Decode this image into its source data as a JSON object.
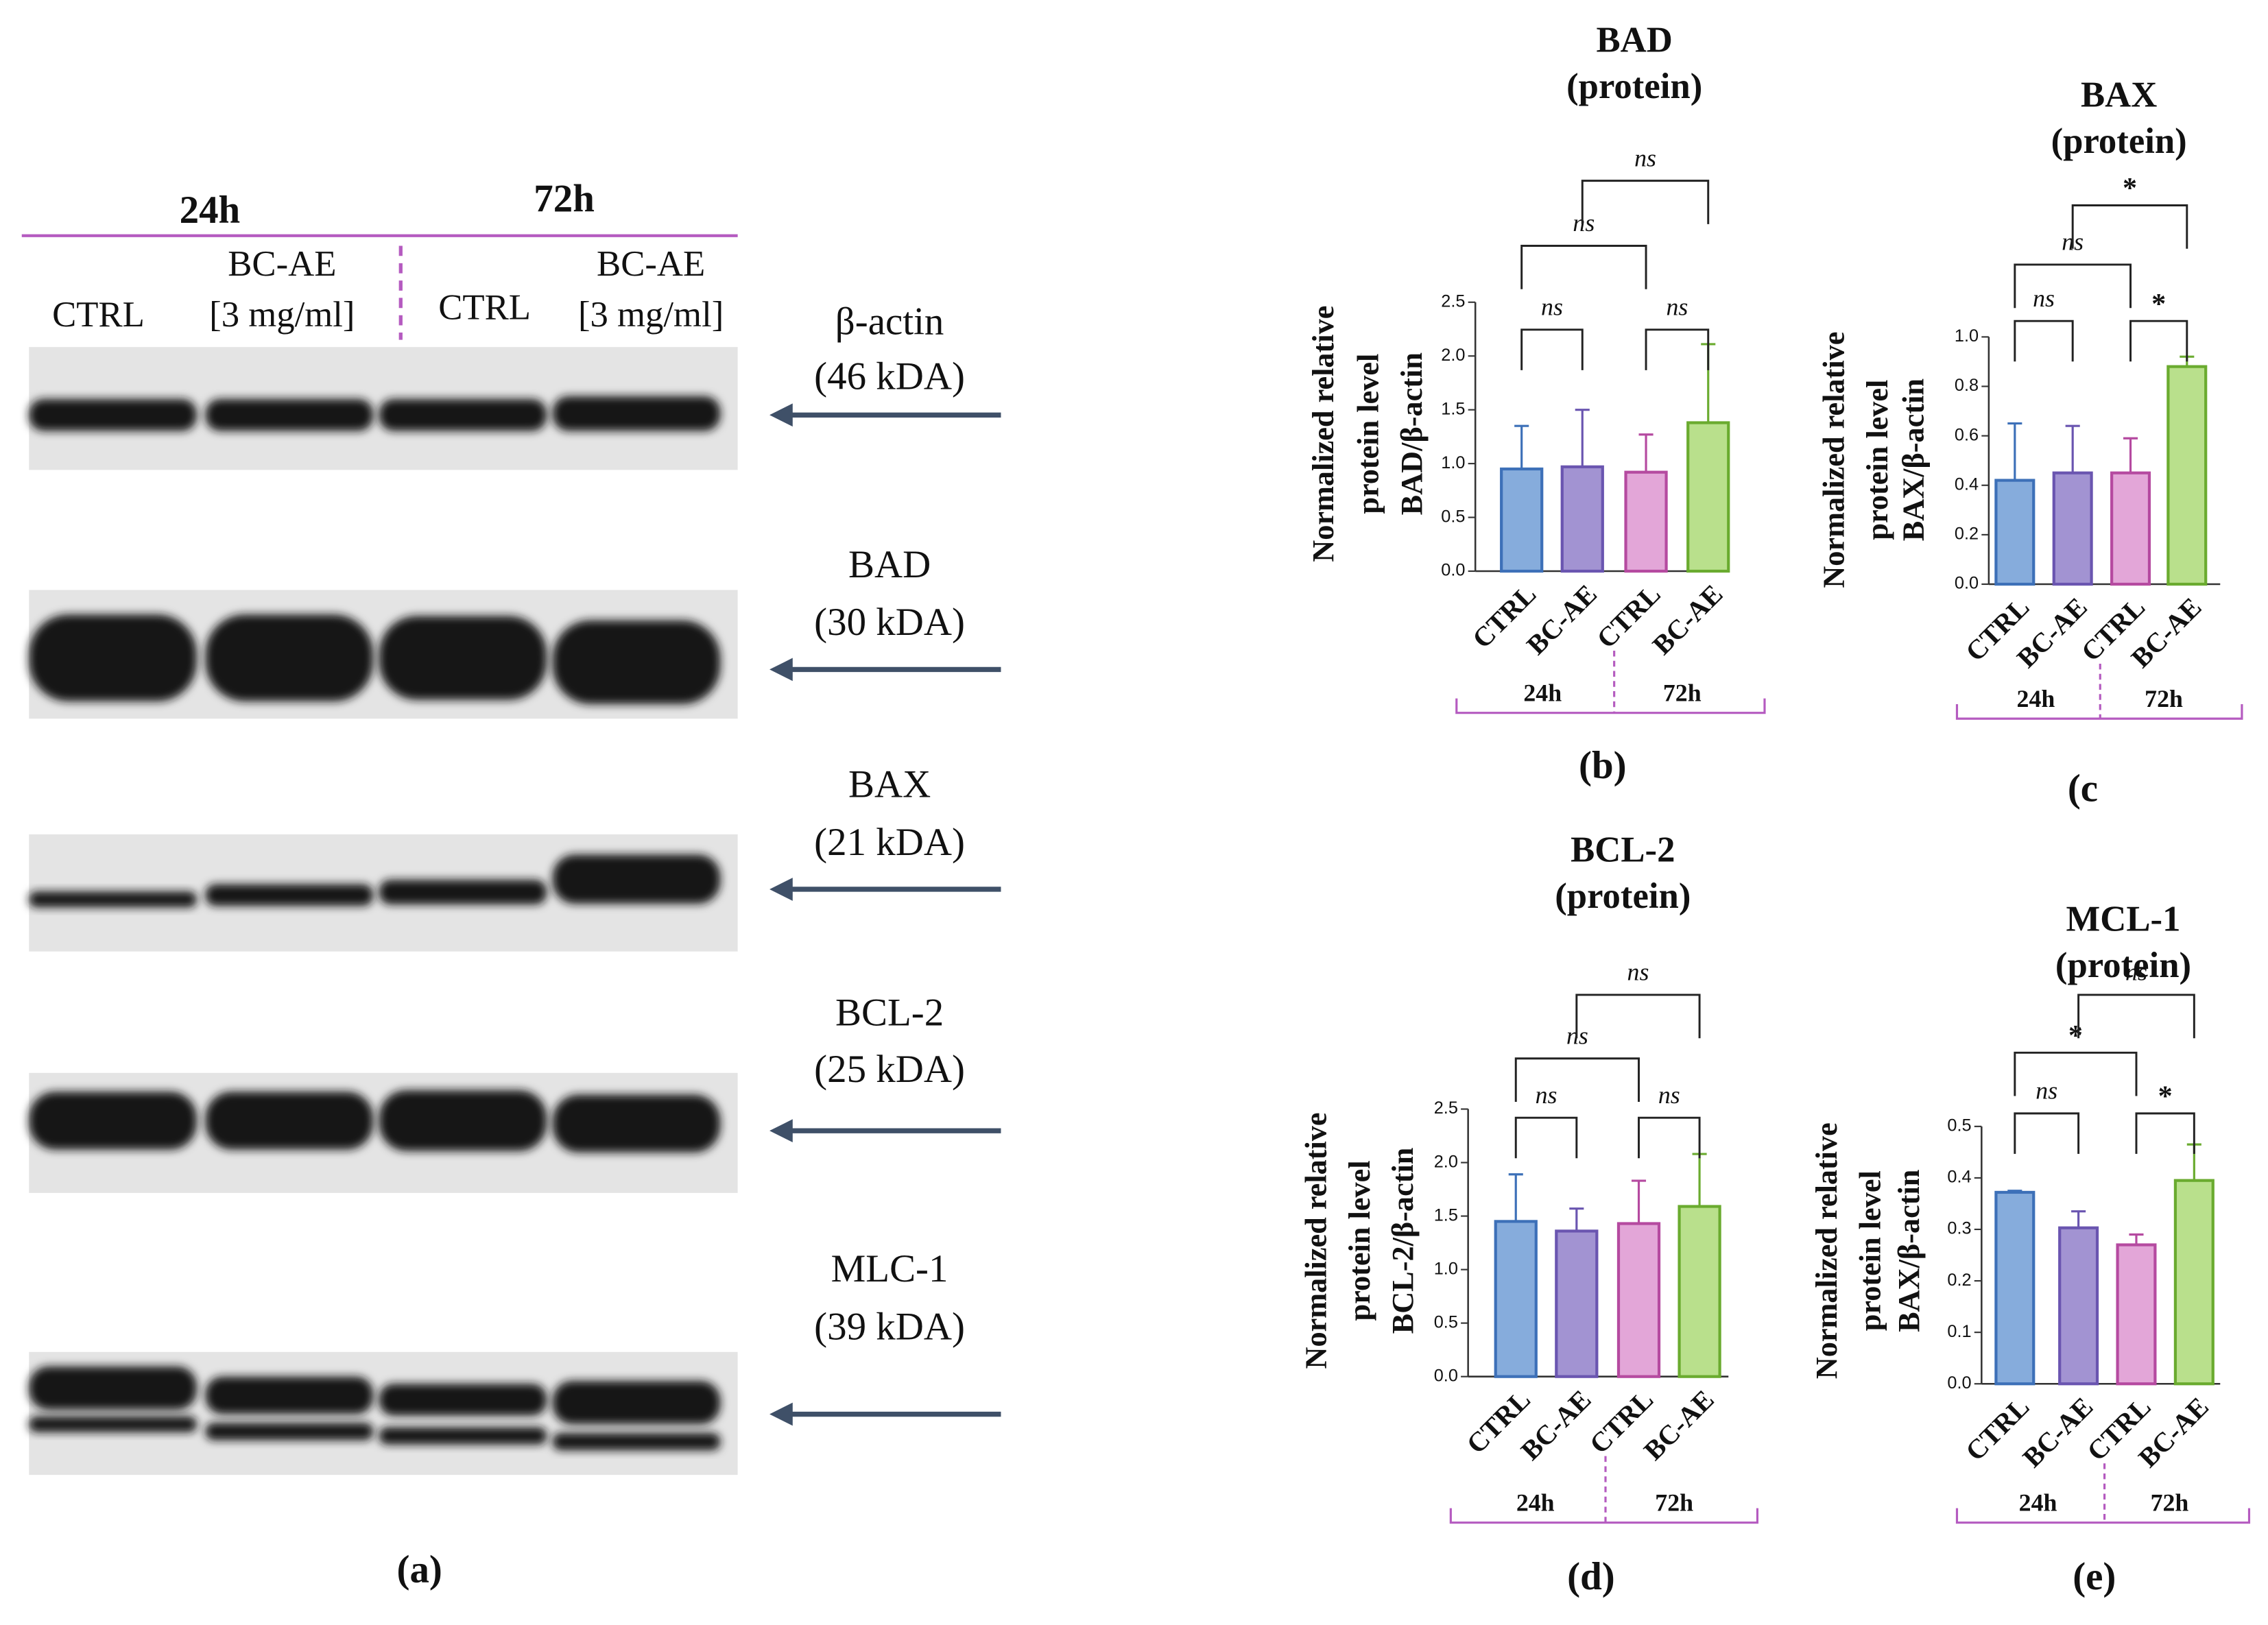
{
  "blot": {
    "time_points": [
      "24h",
      "72h"
    ],
    "lanes": [
      [
        "CTRL"
      ],
      [
        "BC-AE",
        "[3 mg/ml]"
      ],
      [
        "CTRL"
      ],
      [
        "BC-AE",
        "[3 mg/ml]"
      ]
    ],
    "proteins": [
      {
        "name": "β-actin",
        "size": "(46 kDA)"
      },
      {
        "name": "BAD",
        "size": "(30 kDA)"
      },
      {
        "name": "BAX",
        "size": "(21 kDA)"
      },
      {
        "name": "BCL-2",
        "size": "(25 kDA)"
      },
      {
        "name": "MLC-1",
        "size": "(39 kDA)"
      }
    ],
    "panel_label": "(a)"
  },
  "chart_data": [
    {
      "type": "bar",
      "title": [
        "BAD",
        "(protein)"
      ],
      "ylabel": [
        "Normalized relative",
        "protein level",
        "BAD/β-actin"
      ],
      "categories": [
        "CTRL",
        "BC-AE",
        "CTRL",
        "BC-AE"
      ],
      "groups": [
        "24h",
        "72h"
      ],
      "values": [
        0.95,
        0.97,
        0.92,
        1.38
      ],
      "errors": [
        0.4,
        0.53,
        0.35,
        0.73
      ],
      "colors": [
        "#86acdc",
        "#a293d2",
        "#e3a6d8",
        "#b9e08c"
      ],
      "edge_colors": [
        "#3d70b8",
        "#6a55b0",
        "#b54aa0",
        "#6aab2f"
      ],
      "ylim": [
        0,
        2.5
      ],
      "yticks": [
        {
          "value": 0,
          "label": "0.0"
        },
        0.5,
        {
          "value": 1,
          "label": "1.0"
        },
        1.5,
        {
          "value": 2,
          "label": "2.0"
        },
        2.5
      ],
      "comparisons": [
        {
          "pair": [
            0,
            1
          ],
          "label": "ns"
        },
        {
          "pair": [
            2,
            3
          ],
          "label": "ns"
        },
        {
          "pair": [
            0,
            2
          ],
          "label": "ns"
        },
        {
          "pair": [
            1,
            3
          ],
          "label": "ns"
        }
      ],
      "panel_label": "(b)"
    },
    {
      "type": "bar",
      "title": [
        "BAX",
        "(protein)"
      ],
      "ylabel": [
        "Normalized relative",
        "protein level",
        "BAX/β-actin"
      ],
      "categories": [
        "CTRL",
        "BC-AE",
        "CTRL",
        "BC-AE"
      ],
      "groups": [
        "24h",
        "72h"
      ],
      "values": [
        0.42,
        0.45,
        0.45,
        0.88
      ],
      "errors": [
        0.23,
        0.19,
        0.14,
        0.04
      ],
      "colors": [
        "#86acdc",
        "#a293d2",
        "#e3a6d8",
        "#b9e08c"
      ],
      "edge_colors": [
        "#3d70b8",
        "#6a55b0",
        "#b54aa0",
        "#6aab2f"
      ],
      "ylim": [
        0,
        1
      ],
      "yticks": [
        {
          "value": 0,
          "label": "0.0"
        },
        0.2,
        0.4,
        0.6,
        0.8,
        {
          "value": 1,
          "label": "1.0"
        }
      ],
      "comparisons": [
        {
          "pair": [
            0,
            1
          ],
          "label": "ns"
        },
        {
          "pair": [
            2,
            3
          ],
          "label": "*"
        },
        {
          "pair": [
            0,
            2
          ],
          "label": "ns"
        },
        {
          "pair": [
            1,
            3
          ],
          "label": "*"
        }
      ],
      "panel_label": "(c"
    },
    {
      "type": "bar",
      "title": [
        "BCL-2",
        "(protein)"
      ],
      "ylabel": [
        "Normalized relative",
        "protein level",
        "BCL-2/β-actin"
      ],
      "categories": [
        "CTRL",
        "BC-AE",
        "CTRL",
        "BC-AE"
      ],
      "groups": [
        "24h",
        "72h"
      ],
      "values": [
        1.45,
        1.36,
        1.43,
        1.59
      ],
      "errors": [
        0.44,
        0.21,
        0.4,
        0.49
      ],
      "colors": [
        "#86acdc",
        "#a293d2",
        "#e3a6d8",
        "#b9e08c"
      ],
      "edge_colors": [
        "#3d70b8",
        "#6a55b0",
        "#b54aa0",
        "#6aab2f"
      ],
      "ylim": [
        0,
        2.5
      ],
      "yticks": [
        {
          "value": 0,
          "label": "0.0"
        },
        0.5,
        {
          "value": 1,
          "label": "1.0"
        },
        1.5,
        {
          "value": 2,
          "label": "2.0"
        },
        2.5
      ],
      "comparisons": [
        {
          "pair": [
            0,
            1
          ],
          "label": "ns"
        },
        {
          "pair": [
            2,
            3
          ],
          "label": "ns"
        },
        {
          "pair": [
            0,
            2
          ],
          "label": "ns"
        },
        {
          "pair": [
            1,
            3
          ],
          "label": "ns"
        }
      ],
      "panel_label": "(d)"
    },
    {
      "type": "bar",
      "title": [
        "MCL-1",
        "(protein)"
      ],
      "ylabel": [
        "Normalized relative",
        "protein level",
        "BAX/β-actin"
      ],
      "categories": [
        "CTRL",
        "BC-AE",
        "CTRL",
        "BC-AE"
      ],
      "groups": [
        "24h",
        "72h"
      ],
      "values": [
        0.372,
        0.303,
        0.27,
        0.395
      ],
      "errors": [
        0.003,
        0.032,
        0.02,
        0.07
      ],
      "colors": [
        "#86acdc",
        "#a293d2",
        "#e3a6d8",
        "#b9e08c"
      ],
      "edge_colors": [
        "#3d70b8",
        "#6a55b0",
        "#b54aa0",
        "#6aab2f"
      ],
      "ylim": [
        0,
        0.5
      ],
      "yticks": [
        {
          "value": 0,
          "label": "0.0"
        },
        0.1,
        0.2,
        0.3,
        0.4,
        0.5
      ],
      "comparisons": [
        {
          "pair": [
            0,
            1
          ],
          "label": "ns"
        },
        {
          "pair": [
            2,
            3
          ],
          "label": "*"
        },
        {
          "pair": [
            0,
            2
          ],
          "label": "*"
        },
        {
          "pair": [
            1,
            3
          ],
          "label": "ns"
        }
      ],
      "panel_label": "(e)"
    }
  ]
}
